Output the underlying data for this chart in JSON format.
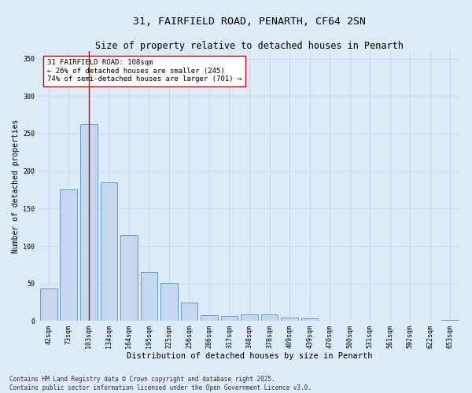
{
  "title": "31, FAIRFIELD ROAD, PENARTH, CF64 2SN",
  "subtitle": "Size of property relative to detached houses in Penarth",
  "xlabel": "Distribution of detached houses by size in Penarth",
  "ylabel": "Number of detached properties",
  "categories": [
    "42sqm",
    "73sqm",
    "103sqm",
    "134sqm",
    "164sqm",
    "195sqm",
    "225sqm",
    "256sqm",
    "286sqm",
    "317sqm",
    "348sqm",
    "378sqm",
    "409sqm",
    "439sqm",
    "470sqm",
    "500sqm",
    "531sqm",
    "561sqm",
    "592sqm",
    "622sqm",
    "653sqm"
  ],
  "values": [
    43,
    176,
    263,
    185,
    115,
    65,
    51,
    25,
    8,
    7,
    9,
    9,
    5,
    4,
    1,
    1,
    0,
    1,
    0,
    0,
    2
  ],
  "bar_color": "#c5d8f0",
  "bar_edge_color": "#5a8fc3",
  "grid_color": "#c8d8e8",
  "background_color": "#ddeaf7",
  "vline_x_index": 2,
  "vline_color": "#cc0000",
  "annotation_text": "31 FAIRFIELD ROAD: 108sqm\n← 26% of detached houses are smaller (245)\n74% of semi-detached houses are larger (701) →",
  "annotation_box_facecolor": "#ffffff",
  "annotation_box_edge": "#cc0000",
  "footnote": "Contains HM Land Registry data © Crown copyright and database right 2025.\nContains public sector information licensed under the Open Government Licence v3.0.",
  "ylim": [
    0,
    360
  ],
  "title_fontsize": 9.5,
  "subtitle_fontsize": 8.5,
  "xlabel_fontsize": 7.5,
  "ylabel_fontsize": 7,
  "tick_fontsize": 6,
  "annotation_fontsize": 6.5,
  "footnote_fontsize": 5.5
}
